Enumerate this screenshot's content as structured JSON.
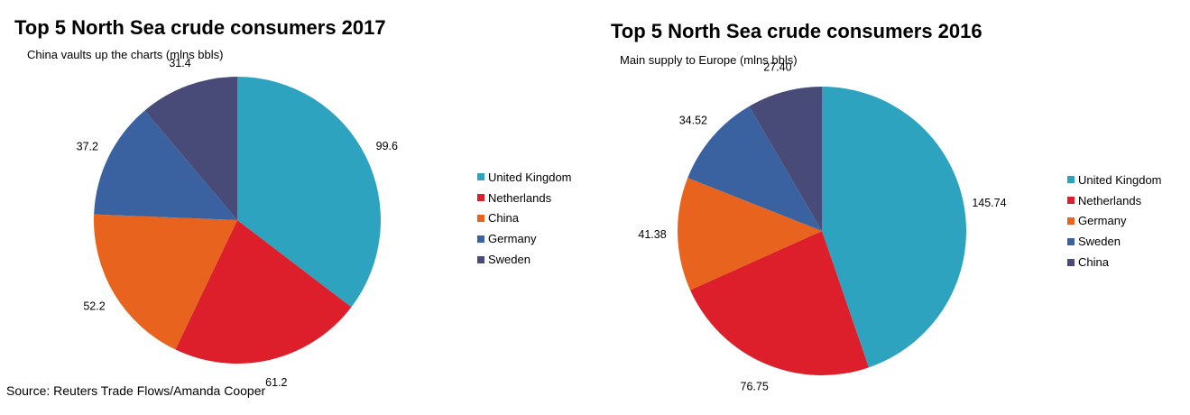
{
  "chart_data": [
    {
      "type": "pie",
      "title": "Top 5 North Sea crude consumers 2017",
      "subtitle": "China vaults up the charts (mlns bbls)",
      "slices": [
        {
          "label": "United Kingdom",
          "value": 99.6,
          "value_label": "99.6",
          "color": "#2ea3bf"
        },
        {
          "label": "Netherlands",
          "value": 61.2,
          "value_label": "61.2",
          "color": "#dc1f2a"
        },
        {
          "label": "China",
          "value": 52.2,
          "value_label": "52.2",
          "color": "#e8641e"
        },
        {
          "label": "Germany",
          "value": 37.2,
          "value_label": "37.2",
          "color": "#3b62a0"
        },
        {
          "label": "Sweden",
          "value": 31.4,
          "value_label": "31.4",
          "color": "#484b78"
        }
      ],
      "legend_position": "right"
    },
    {
      "type": "pie",
      "title": "Top 5 North Sea crude consumers 2016",
      "subtitle": "Main supply to Europe (mlns bbls)",
      "slices": [
        {
          "label": "United Kingdom",
          "value": 145.74,
          "value_label": "145.74",
          "color": "#2ea3bf"
        },
        {
          "label": "Netherlands",
          "value": 76.75,
          "value_label": "76.75",
          "color": "#dc1f2a"
        },
        {
          "label": "Germany",
          "value": 41.38,
          "value_label": "41.38",
          "color": "#e8641e"
        },
        {
          "label": "Sweden",
          "value": 34.52,
          "value_label": "34.52",
          "color": "#3b62a0"
        },
        {
          "label": "China",
          "value": 27.4,
          "value_label": "27.40",
          "color": "#484b78"
        }
      ],
      "legend_position": "right"
    }
  ],
  "source": "Source: Reuters Trade Flows/Amanda Cooper"
}
